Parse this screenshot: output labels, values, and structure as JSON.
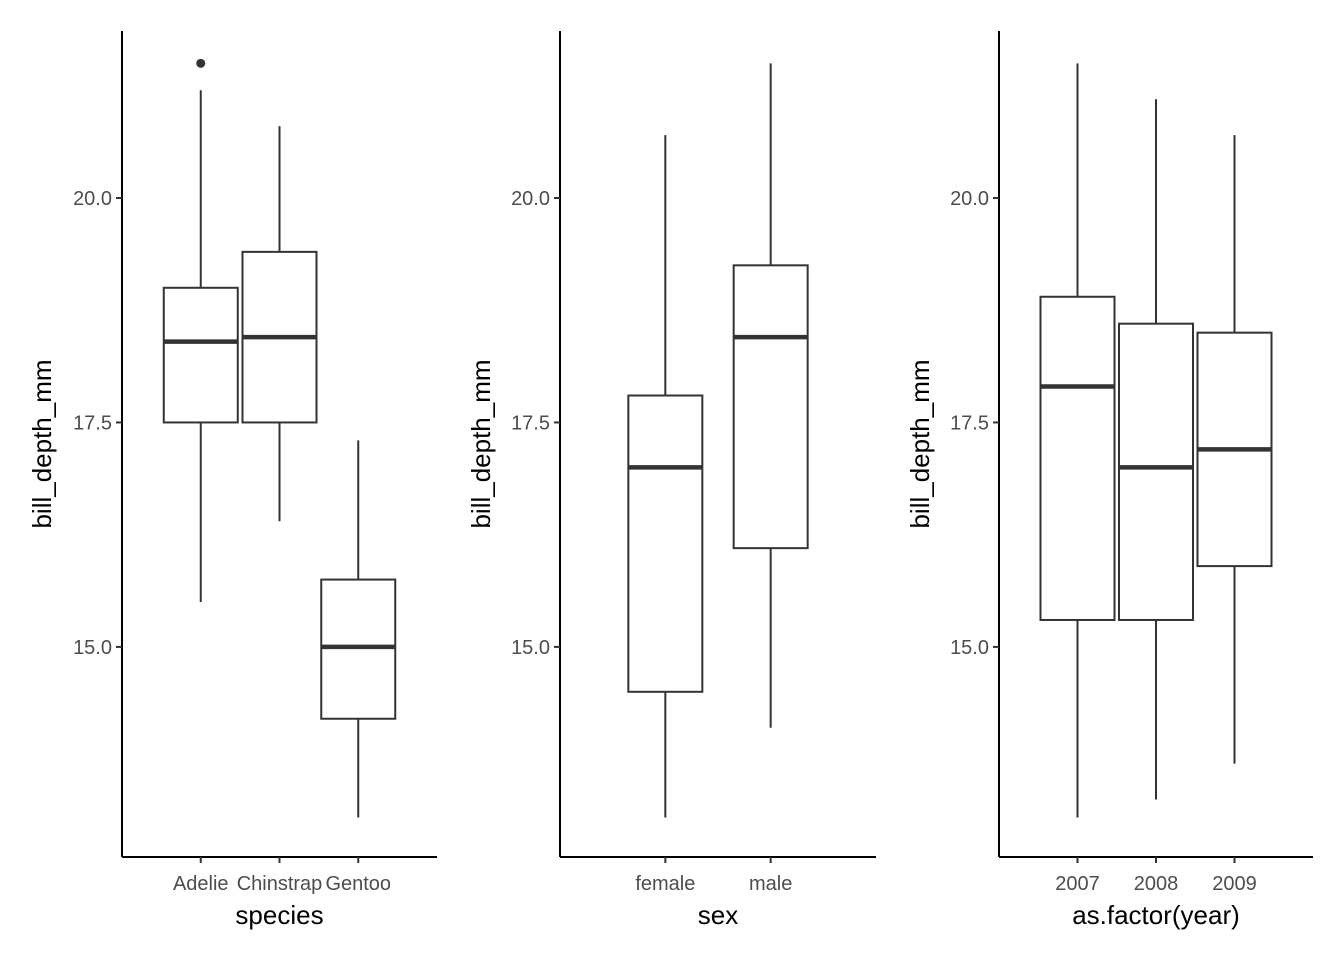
{
  "chart_data": [
    {
      "type": "boxplot",
      "xlabel": "species",
      "ylabel": "bill_depth_mm",
      "ylim": [
        12.66,
        21.86
      ],
      "yticks": [
        15.0,
        17.5,
        20.0
      ],
      "ytick_labels": [
        "15.0",
        "17.5",
        "20.0"
      ],
      "grid": false,
      "categories": [
        "Adelie",
        "Chinstrap",
        "Gentoo"
      ],
      "boxes": [
        {
          "category": "Adelie",
          "whisker_low": 15.5,
          "q1": 17.5,
          "median": 18.4,
          "q3": 19.0,
          "whisker_high": 21.2,
          "outliers": [
            21.5
          ]
        },
        {
          "category": "Chinstrap",
          "whisker_low": 16.4,
          "q1": 17.5,
          "median": 18.45,
          "q3": 19.4,
          "whisker_high": 20.8,
          "outliers": []
        },
        {
          "category": "Gentoo",
          "whisker_low": 13.1,
          "q1": 14.2,
          "median": 15.0,
          "q3": 15.75,
          "whisker_high": 17.3,
          "outliers": []
        }
      ]
    },
    {
      "type": "boxplot",
      "xlabel": "sex",
      "ylabel": "bill_depth_mm",
      "ylim": [
        12.66,
        21.86
      ],
      "yticks": [
        15.0,
        17.5,
        20.0
      ],
      "ytick_labels": [
        "15.0",
        "17.5",
        "20.0"
      ],
      "grid": false,
      "categories": [
        "female",
        "male"
      ],
      "boxes": [
        {
          "category": "female",
          "whisker_low": 13.1,
          "q1": 14.5,
          "median": 17.0,
          "q3": 17.8,
          "whisker_high": 20.7,
          "outliers": []
        },
        {
          "category": "male",
          "whisker_low": 14.1,
          "q1": 16.1,
          "median": 18.45,
          "q3": 19.25,
          "whisker_high": 21.5,
          "outliers": []
        }
      ]
    },
    {
      "type": "boxplot",
      "xlabel": "as.factor(year)",
      "ylabel": "bill_depth_mm",
      "ylim": [
        12.66,
        21.86
      ],
      "yticks": [
        15.0,
        17.5,
        20.0
      ],
      "ytick_labels": [
        "15.0",
        "17.5",
        "20.0"
      ],
      "grid": false,
      "categories": [
        "2007",
        "2008",
        "2009"
      ],
      "boxes": [
        {
          "category": "2007",
          "whisker_low": 13.1,
          "q1": 15.3,
          "median": 17.9,
          "q3": 18.9,
          "whisker_high": 21.5,
          "outliers": []
        },
        {
          "category": "2008",
          "whisker_low": 13.3,
          "q1": 15.3,
          "median": 17.0,
          "q3": 18.6,
          "whisker_high": 21.1,
          "outliers": []
        },
        {
          "category": "2009",
          "whisker_low": 13.7,
          "q1": 15.9,
          "median": 17.2,
          "q3": 18.5,
          "whisker_high": 20.7,
          "outliers": []
        }
      ]
    }
  ]
}
